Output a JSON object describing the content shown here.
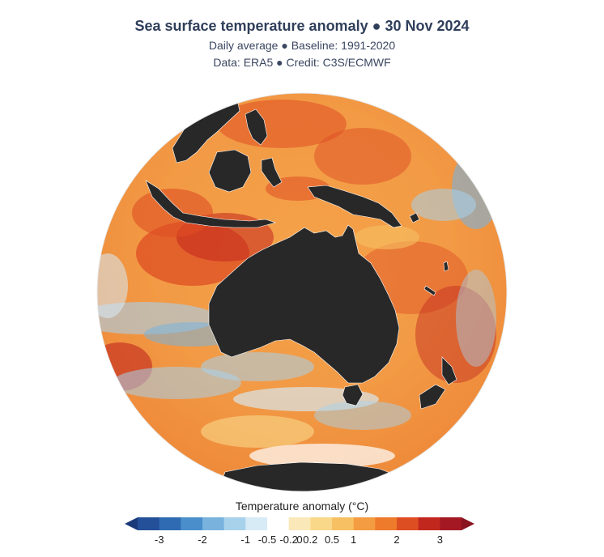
{
  "header": {
    "title": "Sea surface temperature anomaly ● 30 Nov 2024",
    "subtitle_line1": "Daily average ● Baseline: 1991-2020",
    "subtitle_line2": "Data: ERA5 ● Credit: C3S/ECMWF"
  },
  "legend": {
    "title": "Temperature anomaly (°C)",
    "ticks": [
      "-3",
      "-2",
      "-1",
      "-0.5",
      "-0.2",
      "0",
      "0.2",
      "0.5",
      "1",
      "2",
      "3"
    ],
    "colors": {
      "below_min_arrow": "#1a3a7a",
      "bins": [
        "#244f99",
        "#2f6bb3",
        "#4a8fcc",
        "#79b3dd",
        "#a8d1ec",
        "#d7ebf7",
        "#ffffff",
        "#fbe8b8",
        "#f9d88a",
        "#f7c063",
        "#f39c41",
        "#ee7a2c",
        "#de4e23",
        "#c2271e",
        "#a31823"
      ],
      "above_max_arrow": "#8a1420"
    }
  },
  "map": {
    "projection": "orthographic",
    "center": "Australia",
    "land_color": "#282828",
    "ocean_base_color": "#f29a45"
  }
}
